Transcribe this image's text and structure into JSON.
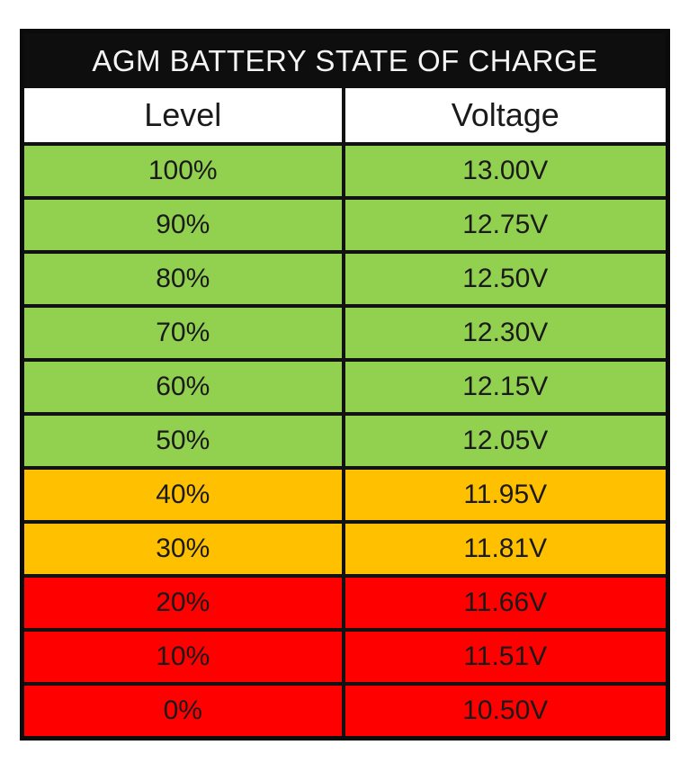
{
  "table": {
    "title": "AGM BATTERY STATE OF CHARGE",
    "columns": {
      "level": "Level",
      "voltage": "Voltage"
    },
    "rows": [
      {
        "level": "100%",
        "voltage": "13.00V",
        "color": "#92d050"
      },
      {
        "level": "90%",
        "voltage": "12.75V",
        "color": "#92d050"
      },
      {
        "level": "80%",
        "voltage": "12.50V",
        "color": "#92d050"
      },
      {
        "level": "70%",
        "voltage": "12.30V",
        "color": "#92d050"
      },
      {
        "level": "60%",
        "voltage": "12.15V",
        "color": "#92d050"
      },
      {
        "level": "50%",
        "voltage": "12.05V",
        "color": "#92d050"
      },
      {
        "level": "40%",
        "voltage": "11.95V",
        "color": "#ffc000"
      },
      {
        "level": "30%",
        "voltage": "11.81V",
        "color": "#ffc000"
      },
      {
        "level": "20%",
        "voltage": "11.66V",
        "color": "#fe0000"
      },
      {
        "level": "10%",
        "voltage": "11.51V",
        "color": "#fe0000"
      },
      {
        "level": "0%",
        "voltage": "10.50V",
        "color": "#fe0000"
      }
    ],
    "colors": {
      "good": "#92d050",
      "warning": "#ffc000",
      "critical": "#fe0000",
      "title_bg": "#0e0e0e",
      "title_text": "#f5f5f5",
      "border": "#121212"
    }
  },
  "chart_data": {
    "type": "table",
    "title": "AGM BATTERY STATE OF CHARGE",
    "columns": [
      "Level",
      "Voltage"
    ],
    "rows": [
      [
        "100%",
        "13.00V"
      ],
      [
        "90%",
        "12.75V"
      ],
      [
        "80%",
        "12.50V"
      ],
      [
        "70%",
        "12.30V"
      ],
      [
        "60%",
        "12.15V"
      ],
      [
        "50%",
        "12.05V"
      ],
      [
        "40%",
        "11.95V"
      ],
      [
        "30%",
        "11.81V"
      ],
      [
        "20%",
        "11.66V"
      ],
      [
        "10%",
        "11.51V"
      ],
      [
        "0%",
        "10.50V"
      ]
    ],
    "zones": [
      {
        "levels": "100%-50%",
        "color_name": "green",
        "hex": "#92d050"
      },
      {
        "levels": "40%-30%",
        "color_name": "amber",
        "hex": "#ffc000"
      },
      {
        "levels": "20%-0%",
        "color_name": "red",
        "hex": "#fe0000"
      }
    ],
    "x_numeric_percent": [
      100,
      90,
      80,
      70,
      60,
      50,
      40,
      30,
      20,
      10,
      0
    ],
    "y_numeric_volts": [
      13.0,
      12.75,
      12.5,
      12.3,
      12.15,
      12.05,
      11.95,
      11.81,
      11.66,
      11.51,
      10.5
    ]
  }
}
